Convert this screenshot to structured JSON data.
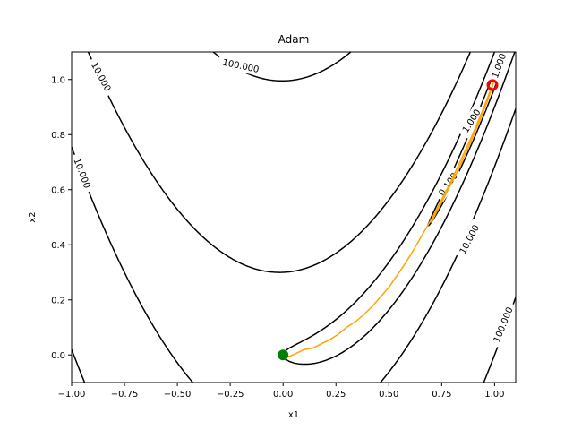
{
  "chart_data": {
    "type": "contour",
    "title": "Adam",
    "xlabel": "x1",
    "ylabel": "x2",
    "xlim": [
      -1.0,
      1.1
    ],
    "ylim": [
      -0.1,
      1.1
    ],
    "xticks": [
      -1.0,
      -0.75,
      -0.5,
      -0.25,
      0.0,
      0.25,
      0.5,
      0.75,
      1.0
    ],
    "xtick_labels": [
      "−1.00",
      "−0.75",
      "−0.50",
      "−0.25",
      "0.00",
      "0.25",
      "0.50",
      "0.75",
      "1.00"
    ],
    "yticks": [
      0.0,
      0.2,
      0.4,
      0.6,
      0.8,
      1.0
    ],
    "ytick_labels": [
      "0.0",
      "0.2",
      "0.4",
      "0.6",
      "0.8",
      "1.0"
    ],
    "function": "rosenbrock",
    "contour_levels": [
      0.1,
      1.0,
      10.0,
      100.0
    ],
    "contour_labels": [
      {
        "text": "10.000",
        "x": -0.86,
        "y": 1.01,
        "angle": 62
      },
      {
        "text": "10.000",
        "x": -0.95,
        "y": 0.66,
        "angle": 69
      },
      {
        "text": "100.000",
        "x": -0.2,
        "y": 1.05,
        "angle": 12
      },
      {
        "text": "1.000",
        "x": 0.89,
        "y": 0.85,
        "angle": -58
      },
      {
        "text": "0.100",
        "x": 0.78,
        "y": 0.62,
        "angle": -55
      },
      {
        "text": "10.000",
        "x": 0.88,
        "y": 0.42,
        "angle": -62
      },
      {
        "text": "100.000",
        "x": 1.04,
        "y": 0.11,
        "angle": -68
      },
      {
        "text": "1.000",
        "x": 1.02,
        "y": 1.05,
        "angle": -70
      }
    ],
    "trajectory": {
      "color": "#ffa500",
      "points": [
        [
          0.0,
          0.0
        ],
        [
          0.03,
          -0.005
        ],
        [
          0.06,
          0.005
        ],
        [
          0.1,
          0.02
        ],
        [
          0.14,
          0.025
        ],
        [
          0.18,
          0.04
        ],
        [
          0.22,
          0.055
        ],
        [
          0.26,
          0.075
        ],
        [
          0.3,
          0.1
        ],
        [
          0.34,
          0.12
        ],
        [
          0.38,
          0.145
        ],
        [
          0.42,
          0.175
        ],
        [
          0.46,
          0.21
        ],
        [
          0.5,
          0.245
        ],
        [
          0.54,
          0.29
        ],
        [
          0.58,
          0.335
        ],
        [
          0.62,
          0.385
        ],
        [
          0.65,
          0.425
        ],
        [
          0.68,
          0.465
        ],
        [
          0.71,
          0.505
        ],
        [
          0.74,
          0.55
        ],
        [
          0.77,
          0.595
        ],
        [
          0.8,
          0.64
        ],
        [
          0.83,
          0.69
        ],
        [
          0.86,
          0.74
        ],
        [
          0.89,
          0.79
        ],
        [
          0.92,
          0.845
        ],
        [
          0.95,
          0.9
        ],
        [
          0.975,
          0.95
        ],
        [
          0.99,
          0.98
        ]
      ],
      "branch": [
        [
          0.7,
          0.48
        ],
        [
          0.76,
          0.57
        ],
        [
          0.82,
          0.66
        ],
        [
          0.88,
          0.76
        ],
        [
          0.93,
          0.85
        ],
        [
          0.97,
          0.93
        ],
        [
          1.0,
          1.0
        ]
      ]
    },
    "start_point": {
      "x": 0.0,
      "y": 0.0,
      "color": "#008000"
    },
    "end_point": {
      "x": 0.99,
      "y": 0.98,
      "color": "#ff0000"
    }
  }
}
